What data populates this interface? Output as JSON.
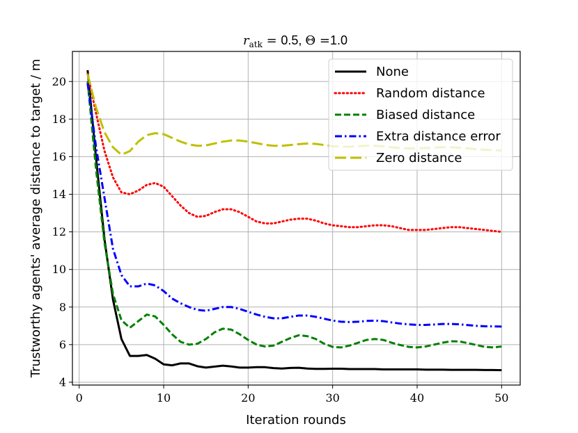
{
  "chart_data": {
    "type": "line",
    "title_parts": {
      "var": "r",
      "sub": "atk",
      "eq1": " = ",
      "val1": "0.5, ",
      "theta": "Θ",
      "eq2": " =",
      "val2": "1.0"
    },
    "xlabel": "Iteration rounds",
    "ylabel": "Trustworthy agents' average distance to target / m",
    "xlim": [
      -0.8,
      52.2
    ],
    "ylim": [
      3.85,
      21.6
    ],
    "xticks": [
      0,
      10,
      20,
      30,
      40,
      50
    ],
    "yticks": [
      4,
      6,
      8,
      10,
      12,
      14,
      16,
      18,
      20
    ],
    "grid": true,
    "legend_position": "top-right",
    "x": [
      1,
      2,
      3,
      4,
      5,
      6,
      7,
      8,
      9,
      10,
      11,
      12,
      13,
      14,
      15,
      16,
      17,
      18,
      19,
      20,
      21,
      22,
      23,
      24,
      25,
      26,
      27,
      28,
      29,
      30,
      31,
      32,
      33,
      34,
      35,
      36,
      37,
      38,
      39,
      40,
      41,
      42,
      43,
      44,
      45,
      46,
      47,
      48,
      49,
      50
    ],
    "series": [
      {
        "name": "None",
        "color": "#000000",
        "dash": "solid",
        "values": [
          20.6,
          15.9,
          11.6,
          8.4,
          6.3,
          5.4,
          5.4,
          5.45,
          5.25,
          4.95,
          4.9,
          5.0,
          5.0,
          4.85,
          4.78,
          4.83,
          4.88,
          4.84,
          4.78,
          4.78,
          4.8,
          4.8,
          4.75,
          4.73,
          4.76,
          4.77,
          4.73,
          4.71,
          4.71,
          4.72,
          4.72,
          4.7,
          4.7,
          4.7,
          4.7,
          4.68,
          4.68,
          4.68,
          4.68,
          4.68,
          4.67,
          4.67,
          4.67,
          4.66,
          4.66,
          4.66,
          4.66,
          4.65,
          4.65,
          4.64
        ]
      },
      {
        "name": "Random distance",
        "color": "#ff0000",
        "dash": "dotted",
        "values": [
          20.4,
          18.3,
          16.3,
          14.9,
          14.1,
          14.0,
          14.2,
          14.5,
          14.6,
          14.4,
          13.9,
          13.4,
          13.0,
          12.8,
          12.85,
          13.05,
          13.2,
          13.2,
          13.05,
          12.8,
          12.55,
          12.45,
          12.45,
          12.55,
          12.65,
          12.7,
          12.7,
          12.6,
          12.45,
          12.35,
          12.3,
          12.25,
          12.25,
          12.3,
          12.35,
          12.35,
          12.3,
          12.2,
          12.1,
          12.1,
          12.1,
          12.15,
          12.2,
          12.25,
          12.25,
          12.2,
          12.15,
          12.1,
          12.05,
          12.0
        ]
      },
      {
        "name": "Biased distance",
        "color": "#008000",
        "dash": "dashed",
        "values": [
          20.0,
          15.3,
          11.4,
          8.7,
          7.3,
          6.9,
          7.25,
          7.6,
          7.5,
          7.05,
          6.55,
          6.15,
          6.0,
          6.05,
          6.3,
          6.65,
          6.85,
          6.8,
          6.55,
          6.25,
          6.0,
          5.9,
          5.95,
          6.15,
          6.35,
          6.5,
          6.45,
          6.3,
          6.05,
          5.88,
          5.85,
          5.95,
          6.1,
          6.25,
          6.3,
          6.25,
          6.1,
          5.98,
          5.88,
          5.85,
          5.9,
          6.0,
          6.1,
          6.18,
          6.17,
          6.08,
          5.98,
          5.88,
          5.85,
          5.9
        ]
      },
      {
        "name": "Extra distance error",
        "color": "#0000ff",
        "dash": "dashdot",
        "values": [
          19.9,
          16.5,
          13.8,
          11.1,
          9.7,
          9.1,
          9.1,
          9.25,
          9.15,
          8.85,
          8.45,
          8.2,
          8.0,
          7.85,
          7.8,
          7.9,
          8.0,
          8.0,
          7.9,
          7.75,
          7.6,
          7.48,
          7.4,
          7.4,
          7.48,
          7.55,
          7.55,
          7.48,
          7.38,
          7.28,
          7.22,
          7.2,
          7.22,
          7.26,
          7.28,
          7.25,
          7.18,
          7.12,
          7.08,
          7.05,
          7.05,
          7.07,
          7.1,
          7.1,
          7.08,
          7.04,
          7.0,
          6.98,
          6.97,
          6.96
        ]
      },
      {
        "name": "Zero distance",
        "color": "#bfbf00",
        "dash": "longdash",
        "values": [
          20.4,
          18.6,
          17.3,
          16.5,
          16.1,
          16.3,
          16.8,
          17.15,
          17.25,
          17.2,
          17.0,
          16.8,
          16.65,
          16.58,
          16.6,
          16.7,
          16.8,
          16.86,
          16.86,
          16.8,
          16.72,
          16.63,
          16.58,
          16.58,
          16.62,
          16.67,
          16.7,
          16.68,
          16.62,
          16.56,
          16.53,
          16.53,
          16.56,
          16.58,
          16.58,
          16.55,
          16.5,
          16.46,
          16.44,
          16.44,
          16.46,
          16.48,
          16.5,
          16.5,
          16.48,
          16.44,
          16.4,
          16.37,
          16.35,
          16.33
        ]
      }
    ]
  }
}
